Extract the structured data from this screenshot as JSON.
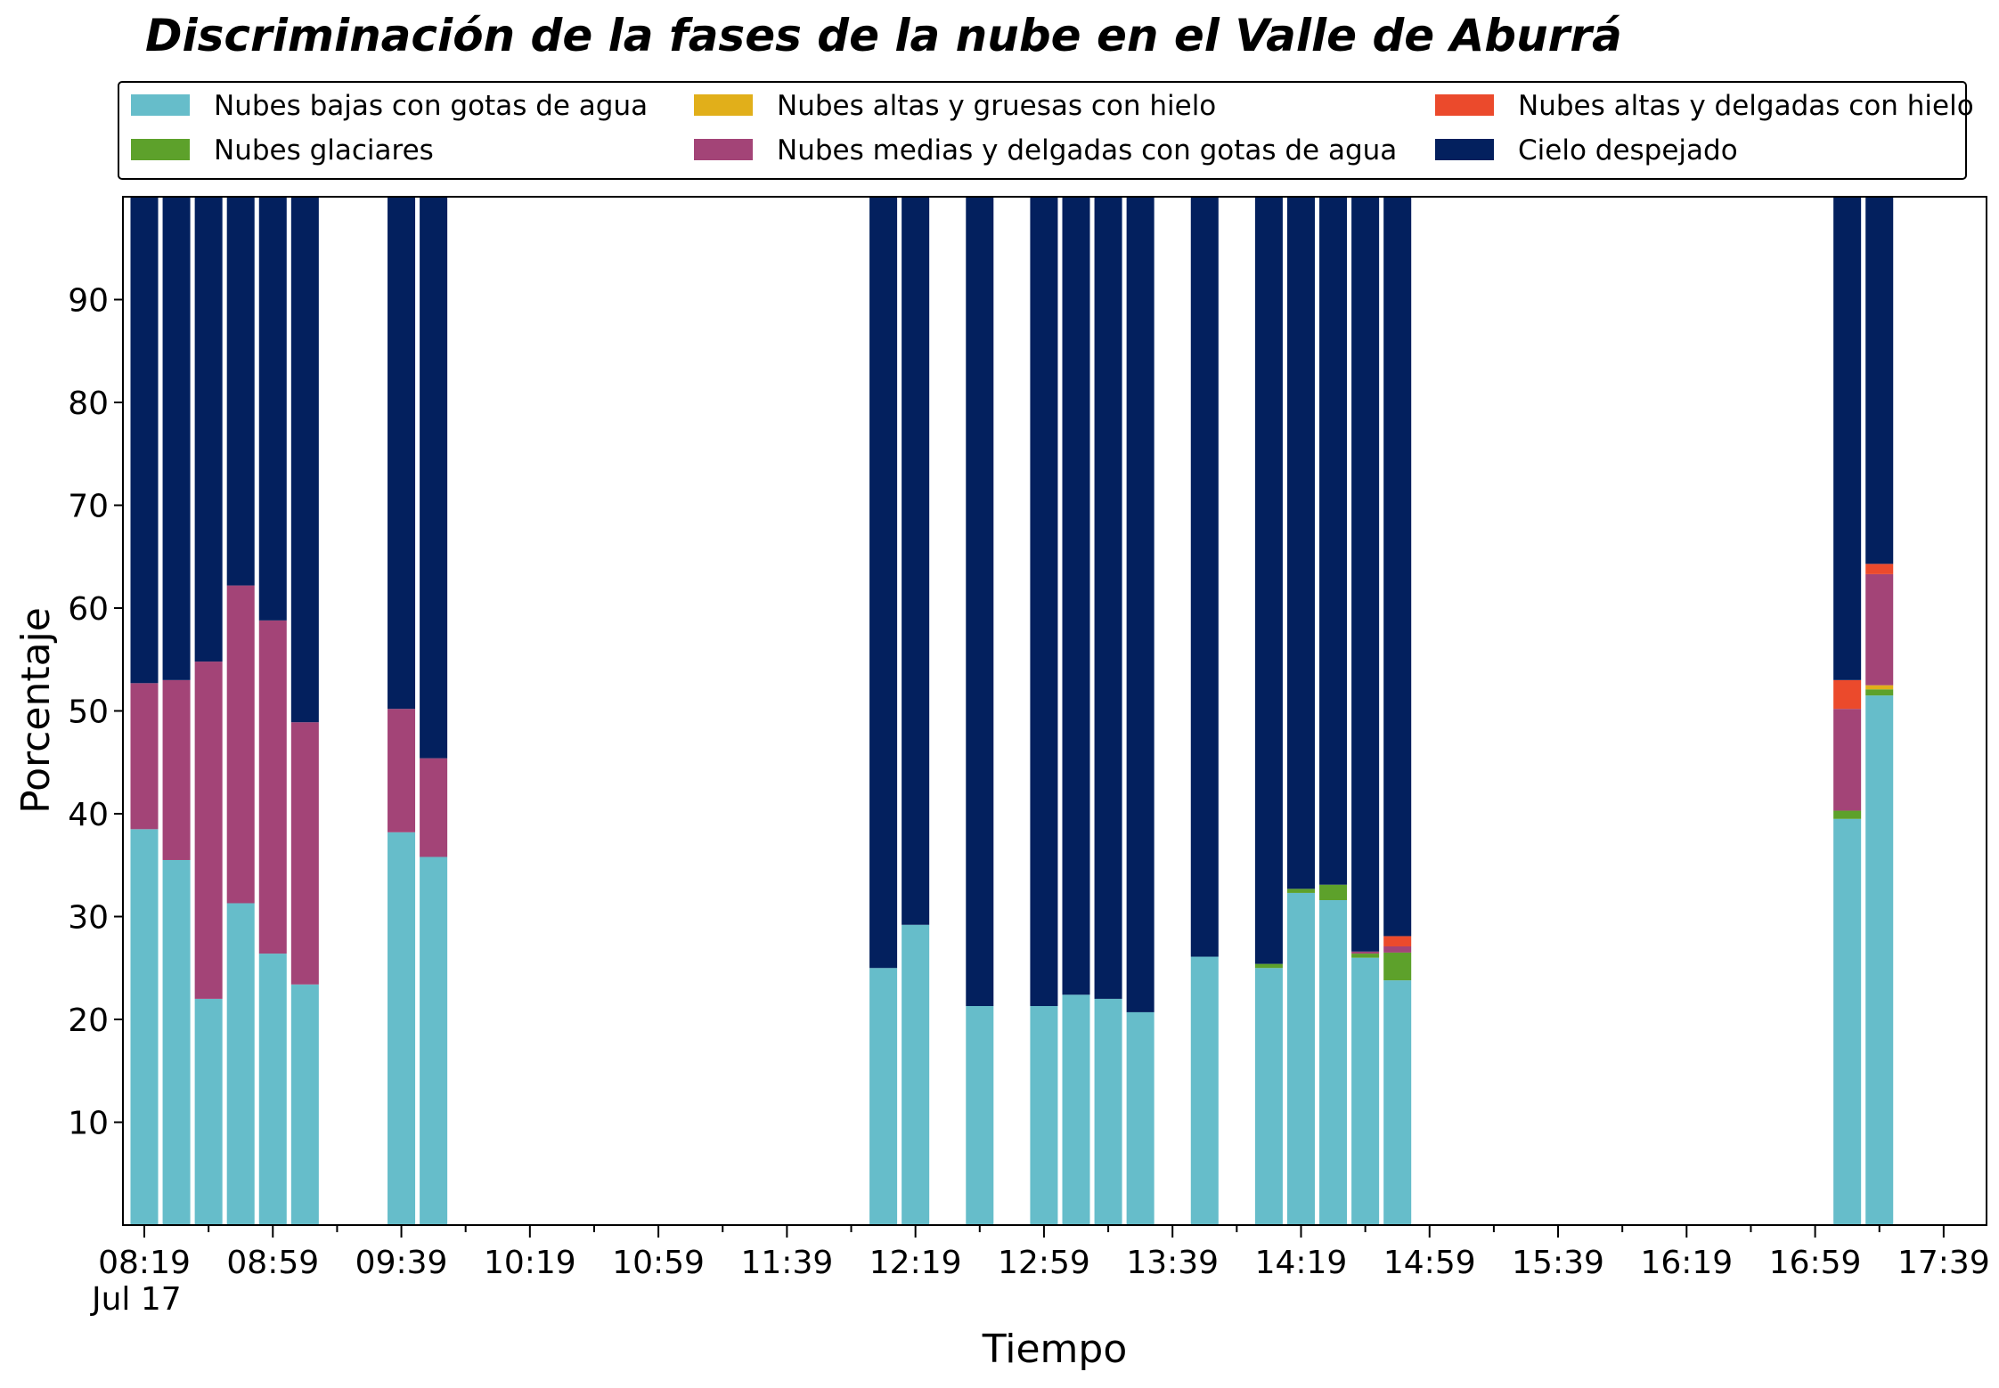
{
  "chart_data": {
    "type": "bar",
    "stacked": true,
    "title": "Discriminación de la fases de la nube en el Valle de Aburrá",
    "xlabel": "Tiempo",
    "ylabel": "Porcentaje",
    "ylim": [
      0,
      100
    ],
    "y_ticks": [
      10,
      20,
      30,
      40,
      50,
      60,
      70,
      80,
      90
    ],
    "x_ticks": [
      "08:19",
      "08:59",
      "09:39",
      "10:19",
      "10:59",
      "11:39",
      "12:19",
      "12:59",
      "13:39",
      "14:19",
      "14:59",
      "15:39",
      "16:19",
      "16:59",
      "17:39"
    ],
    "x_date_label": "Jul 17",
    "x_minor_step_minutes": 20,
    "bar_step_minutes": 10,
    "x_start": "08:19",
    "x_end": "17:59",
    "legend": {
      "placement": "top",
      "columns": 3
    },
    "grid": false,
    "colors": {
      "low_water": "#66BDCA",
      "glacial": "#5DA12B",
      "high_thick_ice": "#E1AF1A",
      "mid_thin_water": "#A34477",
      "high_thin_ice": "#EB4A2C",
      "clear": "#03205E"
    },
    "series": [
      {
        "key": "low_water",
        "name": "Nubes bajas con gotas de agua"
      },
      {
        "key": "glacial",
        "name": "Nubes glaciares"
      },
      {
        "key": "high_thick_ice",
        "name": "Nubes altas y gruesas con hielo"
      },
      {
        "key": "mid_thin_water",
        "name": "Nubes medias y delgadas con gotas de agua"
      },
      {
        "key": "high_thin_ice",
        "name": "Nubes altas y delgadas con hielo"
      },
      {
        "key": "clear",
        "name": "Cielo despejado"
      }
    ],
    "stack_order": [
      "low_water",
      "glacial",
      "high_thick_ice",
      "mid_thin_water",
      "high_thin_ice",
      "clear"
    ],
    "bars": [
      {
        "time": "08:19",
        "low_water": 38.5,
        "glacial": 0,
        "high_thick_ice": 0,
        "mid_thin_water": 14.2,
        "high_thin_ice": 0,
        "clear": 47.3
      },
      {
        "time": "08:29",
        "low_water": 35.5,
        "glacial": 0,
        "high_thick_ice": 0,
        "mid_thin_water": 17.5,
        "high_thin_ice": 0,
        "clear": 47.0
      },
      {
        "time": "08:39",
        "low_water": 22.0,
        "glacial": 0,
        "high_thick_ice": 0,
        "mid_thin_water": 32.8,
        "high_thin_ice": 0,
        "clear": 45.2
      },
      {
        "time": "08:49",
        "low_water": 31.3,
        "glacial": 0,
        "high_thick_ice": 0,
        "mid_thin_water": 30.9,
        "high_thin_ice": 0,
        "clear": 37.8
      },
      {
        "time": "08:59",
        "low_water": 26.4,
        "glacial": 0,
        "high_thick_ice": 0,
        "mid_thin_water": 32.4,
        "high_thin_ice": 0,
        "clear": 41.2
      },
      {
        "time": "09:09",
        "low_water": 23.4,
        "glacial": 0,
        "high_thick_ice": 0,
        "mid_thin_water": 25.5,
        "high_thin_ice": 0,
        "clear": 51.1
      },
      {
        "time": "09:39",
        "low_water": 38.2,
        "glacial": 0,
        "high_thick_ice": 0,
        "mid_thin_water": 12.0,
        "high_thin_ice": 0,
        "clear": 49.8
      },
      {
        "time": "09:49",
        "low_water": 35.8,
        "glacial": 0,
        "high_thick_ice": 0,
        "mid_thin_water": 9.6,
        "high_thin_ice": 0,
        "clear": 54.6
      },
      {
        "time": "12:09",
        "low_water": 25.0,
        "glacial": 0,
        "high_thick_ice": 0,
        "mid_thin_water": 0,
        "high_thin_ice": 0,
        "clear": 75.0
      },
      {
        "time": "12:19",
        "low_water": 29.2,
        "glacial": 0,
        "high_thick_ice": 0,
        "mid_thin_water": 0,
        "high_thin_ice": 0,
        "clear": 70.8
      },
      {
        "time": "12:39",
        "low_water": 21.3,
        "glacial": 0,
        "high_thick_ice": 0,
        "mid_thin_water": 0,
        "high_thin_ice": 0,
        "clear": 78.7
      },
      {
        "time": "12:59",
        "low_water": 21.3,
        "glacial": 0,
        "high_thick_ice": 0,
        "mid_thin_water": 0,
        "high_thin_ice": 0,
        "clear": 78.7
      },
      {
        "time": "13:09",
        "low_water": 22.4,
        "glacial": 0,
        "high_thick_ice": 0,
        "mid_thin_water": 0,
        "high_thin_ice": 0,
        "clear": 77.6
      },
      {
        "time": "13:19",
        "low_water": 22.0,
        "glacial": 0,
        "high_thick_ice": 0,
        "mid_thin_water": 0,
        "high_thin_ice": 0,
        "clear": 78.0
      },
      {
        "time": "13:29",
        "low_water": 20.7,
        "glacial": 0,
        "high_thick_ice": 0,
        "mid_thin_water": 0,
        "high_thin_ice": 0,
        "clear": 79.3
      },
      {
        "time": "13:49",
        "low_water": 26.1,
        "glacial": 0,
        "high_thick_ice": 0,
        "mid_thin_water": 0,
        "high_thin_ice": 0,
        "clear": 73.9
      },
      {
        "time": "14:09",
        "low_water": 25.0,
        "glacial": 0.4,
        "high_thick_ice": 0,
        "mid_thin_water": 0,
        "high_thin_ice": 0,
        "clear": 74.6
      },
      {
        "time": "14:19",
        "low_water": 32.3,
        "glacial": 0.4,
        "high_thick_ice": 0,
        "mid_thin_water": 0,
        "high_thin_ice": 0,
        "clear": 67.3
      },
      {
        "time": "14:29",
        "low_water": 31.6,
        "glacial": 1.5,
        "high_thick_ice": 0,
        "mid_thin_water": 0,
        "high_thin_ice": 0,
        "clear": 66.9
      },
      {
        "time": "14:39",
        "low_water": 26.0,
        "glacial": 0.4,
        "high_thick_ice": 0,
        "mid_thin_water": 0.2,
        "high_thin_ice": 0,
        "clear": 73.4
      },
      {
        "time": "14:49",
        "low_water": 23.8,
        "glacial": 2.7,
        "high_thick_ice": 0,
        "mid_thin_water": 0.6,
        "high_thin_ice": 1.0,
        "clear": 71.9
      },
      {
        "time": "17:09",
        "low_water": 39.5,
        "glacial": 0.8,
        "high_thick_ice": 0,
        "mid_thin_water": 9.9,
        "high_thin_ice": 2.8,
        "clear": 47.0
      },
      {
        "time": "17:19",
        "low_water": 51.5,
        "glacial": 0.6,
        "high_thick_ice": 0.4,
        "mid_thin_water": 10.8,
        "high_thin_ice": 1.0,
        "clear": 35.7
      }
    ]
  }
}
